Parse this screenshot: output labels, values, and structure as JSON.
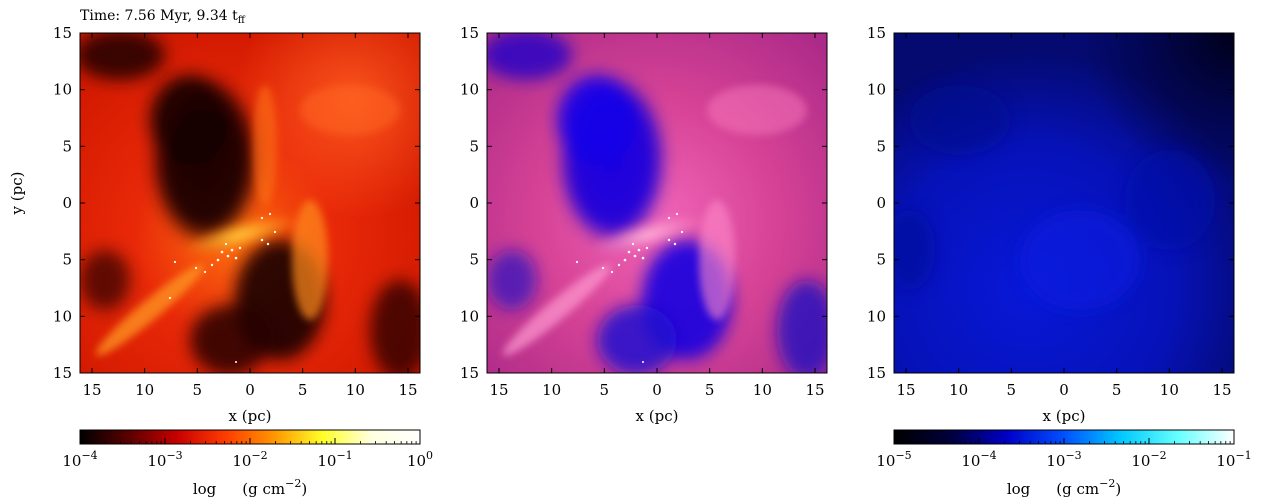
{
  "figure": {
    "time_label": "Time: 7.56 Myr, 9.34 t",
    "time_label_sub": "ff",
    "panels": [
      {
        "id": "left",
        "xticks": [
          "15",
          "10",
          "5",
          "0",
          "5",
          "10",
          "15"
        ],
        "yticks": [
          "15",
          "10",
          "5",
          "0",
          "5",
          "10",
          "15"
        ],
        "xlabel": "x (pc)",
        "ylabel": "y (pc)",
        "colormap": "hot",
        "stars": "white-dots"
      },
      {
        "id": "middle",
        "xticks": [
          "15",
          "10",
          "5",
          "0",
          "5",
          "10",
          "15"
        ],
        "yticks": [
          "15",
          "10",
          "5",
          "0",
          "5",
          "10",
          "15"
        ],
        "xlabel": "x (pc)",
        "ylabel": "",
        "colormap": "blue-magenta",
        "stars": "white-dots"
      },
      {
        "id": "right",
        "xticks": [
          "15",
          "10",
          "5",
          "0",
          "5",
          "10",
          "15"
        ],
        "yticks": [
          "15",
          "10",
          "5",
          "0",
          "5",
          "10",
          "15"
        ],
        "xlabel": "x (pc)",
        "ylabel": "",
        "colormap": "dark-blue",
        "stars": ""
      }
    ],
    "colorbars": [
      {
        "id": "left-colorbar",
        "colors": [
          "#000000",
          "#5a0000",
          "#c80000",
          "#ff3c00",
          "#ff9600",
          "#ffff28",
          "#ffffe0",
          "#ffffff"
        ],
        "tick_base": "10",
        "tick_exps": [
          "−4",
          "−3",
          "−2",
          "−1",
          "0"
        ],
        "label_log": "log",
        "label_unit": "(g cm",
        "label_exp": "−2",
        "label_close": ")"
      },
      {
        "id": "right-colorbar",
        "colors": [
          "#000000",
          "#00003c",
          "#0000c8",
          "#0050ff",
          "#00c8ff",
          "#64ffff",
          "#ffffff"
        ],
        "tick_base": "10",
        "tick_exps": [
          "−5",
          "−4",
          "−3",
          "−2",
          "−1"
        ],
        "label_log": "log",
        "label_unit": "(g cm",
        "label_exp": "−2",
        "label_close": ")"
      }
    ]
  }
}
